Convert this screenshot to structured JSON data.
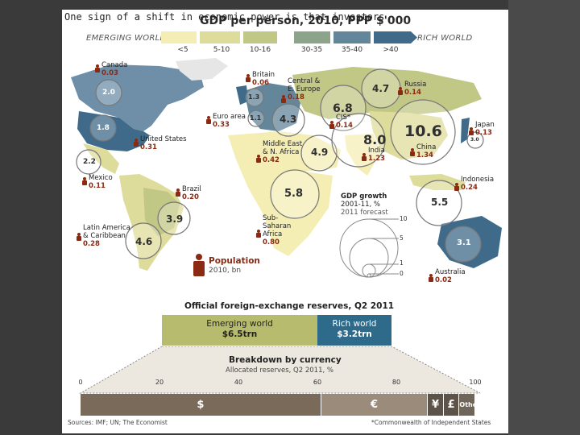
{
  "caption": "One sign of a shift in economic power is that investors",
  "chart_title": "GDP per person, 2010, PPP $'000",
  "legend": {
    "emerging": "EMERGING WORLD",
    "rich": "RICH WORLD",
    "bins": [
      "<5",
      "5-10",
      "10-16",
      "30-35",
      "35-40",
      ">40"
    ],
    "bin_colors": [
      "#f4eeb4",
      "#dedc9a",
      "#c1c785",
      "#8ba48a",
      "#63869a",
      "#3f6a8a"
    ]
  },
  "regions": [
    {
      "name": "Canada",
      "pop": "0.03",
      "gdp": "2.0"
    },
    {
      "name": "United States",
      "pop": "0.31",
      "gdp": "1.8"
    },
    {
      "name": "Mexico",
      "pop": "0.11",
      "gdp": "2.2"
    },
    {
      "name": "Latin America & Caribbean",
      "pop": "0.28",
      "gdp": "4.6"
    },
    {
      "name": "Brazil",
      "pop": "0.20",
      "gdp": "3.9"
    },
    {
      "name": "Britain",
      "pop": "0.06",
      "gdp": "1.3"
    },
    {
      "name": "Euro area",
      "pop": "0.33",
      "gdp": "1.1"
    },
    {
      "name": "Central & E. Europe",
      "pop": "0.18",
      "gdp": "4.3"
    },
    {
      "name": "CIS*",
      "pop": "0.14",
      "gdp": "6.8"
    },
    {
      "name": "Russia",
      "pop": "0.14",
      "gdp": "4.7"
    },
    {
      "name": "Middle East & N. Africa",
      "pop": "0.42",
      "gdp": "4.9"
    },
    {
      "name": "Sub-Saharan Africa",
      "pop": "0.80",
      "gdp": "5.8"
    },
    {
      "name": "India",
      "pop": "1.23",
      "gdp": "8.0"
    },
    {
      "name": "China",
      "pop": "1.34",
      "gdp": "10.6"
    },
    {
      "name": "Japan",
      "pop": "0.13",
      "gdp": "3.0"
    },
    {
      "name": "Indonesia",
      "pop": "0.24",
      "gdp": "5.5"
    },
    {
      "name": "Australia",
      "pop": "0.02",
      "gdp": "3.1"
    }
  ],
  "gdp_growth_key": {
    "title": "GDP growth",
    "period": "2001-11, %",
    "note": "2011 forecast",
    "ticks": [
      "10",
      "5",
      "1",
      "0"
    ]
  },
  "population_key": {
    "title": "Population",
    "unit": "2010, bn"
  },
  "reserves": {
    "title": "Official foreign-exchange reserves, Q2 2011",
    "emerging_label": "Emerging world",
    "emerging_value": "$6.5trn",
    "rich_label": "Rich world",
    "rich_value": "$3.2trn"
  },
  "breakdown": {
    "title": "Breakdown by currency",
    "subtitle": "Allocated reserves, Q2 2011, %",
    "axis": [
      "0",
      "20",
      "40",
      "60",
      "80",
      "100"
    ],
    "segments": [
      {
        "label": "$",
        "value": 61
      },
      {
        "label": "€",
        "value": 27
      },
      {
        "label": "¥",
        "value": 4
      },
      {
        "label": "£",
        "value": 4
      },
      {
        "label": "Other",
        "value": 4
      }
    ]
  },
  "source": "Sources: IMF; UN; The Economist",
  "footnote": "*Commonwealth of Independent States"
}
